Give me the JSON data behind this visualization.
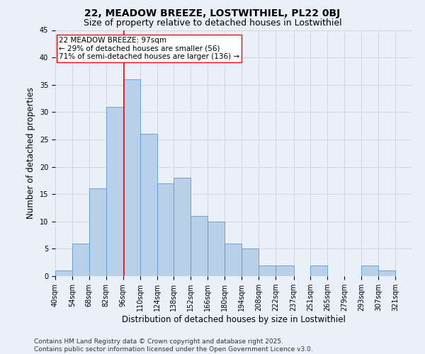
{
  "title": "22, MEADOW BREEZE, LOSTWITHIEL, PL22 0BJ",
  "subtitle": "Size of property relative to detached houses in Lostwithiel",
  "xlabel": "Distribution of detached houses by size in Lostwithiel",
  "ylabel": "Number of detached properties",
  "bin_labels": [
    "40sqm",
    "54sqm",
    "68sqm",
    "82sqm",
    "96sqm",
    "110sqm",
    "124sqm",
    "138sqm",
    "152sqm",
    "166sqm",
    "180sqm",
    "194sqm",
    "208sqm",
    "222sqm",
    "237sqm",
    "251sqm",
    "265sqm",
    "279sqm",
    "293sqm",
    "307sqm",
    "321sqm"
  ],
  "bar_values": [
    1,
    6,
    16,
    31,
    36,
    26,
    17,
    18,
    11,
    10,
    6,
    5,
    2,
    2,
    0,
    2,
    0,
    0,
    2,
    1,
    0
  ],
  "bin_edges": [
    40,
    54,
    68,
    82,
    96,
    110,
    124,
    138,
    152,
    166,
    180,
    194,
    208,
    222,
    237,
    251,
    265,
    279,
    293,
    307,
    321,
    335
  ],
  "bar_color": "#b8d0e8",
  "bar_edgecolor": "#5b9bd5",
  "grid_color": "#d0d8e8",
  "background_color": "#eaf0f8",
  "vline_x": 97,
  "vline_color": "red",
  "annotation_line1": "22 MEADOW BREEZE: 97sqm",
  "annotation_line2": "← 29% of detached houses are smaller (56)",
  "annotation_line3": "71% of semi-detached houses are larger (136) →",
  "annotation_box_edgecolor": "red",
  "annotation_box_facecolor": "white",
  "ylim": [
    0,
    45
  ],
  "yticks": [
    0,
    5,
    10,
    15,
    20,
    25,
    30,
    35,
    40,
    45
  ],
  "footer_line1": "Contains HM Land Registry data © Crown copyright and database right 2025.",
  "footer_line2": "Contains public sector information licensed under the Open Government Licence v3.0.",
  "title_fontsize": 10,
  "subtitle_fontsize": 9,
  "xlabel_fontsize": 8.5,
  "ylabel_fontsize": 8.5,
  "tick_fontsize": 7,
  "annotation_fontsize": 7.5,
  "footer_fontsize": 6.5
}
